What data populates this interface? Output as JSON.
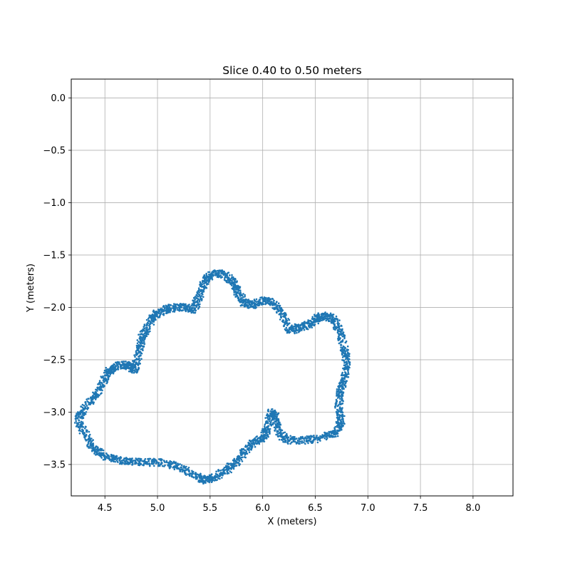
{
  "chart_data": {
    "type": "scatter",
    "title": "Slice 0.40 to 0.50 meters",
    "xlabel": "X (meters)",
    "ylabel": "Y (meters)",
    "xlim": [
      4.18,
      8.38
    ],
    "ylim": [
      -3.8,
      0.18
    ],
    "xticks": [
      4.5,
      5.0,
      5.5,
      6.0,
      6.5,
      7.0,
      7.5,
      8.0
    ],
    "xtick_labels": [
      "4.5",
      "5.0",
      "5.5",
      "6.0",
      "6.5",
      "7.0",
      "7.5",
      "8.0"
    ],
    "yticks": [
      0.0,
      -0.5,
      -1.0,
      -1.5,
      -2.0,
      -2.5,
      -3.0,
      -3.5
    ],
    "ytick_labels": [
      "0.0",
      "−0.5",
      "−1.0",
      "−1.5",
      "−2.0",
      "−2.5",
      "−3.0",
      "−3.5"
    ],
    "grid": true,
    "marker_color": "#1f77b4",
    "approx_outline": [
      [
        4.24,
        -3.07
      ],
      [
        4.3,
        -2.98
      ],
      [
        4.4,
        -2.85
      ],
      [
        4.48,
        -2.72
      ],
      [
        4.55,
        -2.6
      ],
      [
        4.62,
        -2.55
      ],
      [
        4.72,
        -2.55
      ],
      [
        4.78,
        -2.6
      ],
      [
        4.82,
        -2.45
      ],
      [
        4.85,
        -2.3
      ],
      [
        4.9,
        -2.2
      ],
      [
        4.96,
        -2.08
      ],
      [
        5.05,
        -2.03
      ],
      [
        5.15,
        -2.0
      ],
      [
        5.25,
        -2.0
      ],
      [
        5.34,
        -2.02
      ],
      [
        5.4,
        -1.88
      ],
      [
        5.45,
        -1.75
      ],
      [
        5.52,
        -1.68
      ],
      [
        5.62,
        -1.68
      ],
      [
        5.72,
        -1.75
      ],
      [
        5.76,
        -1.85
      ],
      [
        5.82,
        -1.95
      ],
      [
        5.9,
        -1.98
      ],
      [
        6.0,
        -1.93
      ],
      [
        6.1,
        -1.95
      ],
      [
        6.18,
        -2.05
      ],
      [
        6.25,
        -2.23
      ],
      [
        6.35,
        -2.19
      ],
      [
        6.45,
        -2.16
      ],
      [
        6.52,
        -2.1
      ],
      [
        6.6,
        -2.08
      ],
      [
        6.68,
        -2.12
      ],
      [
        6.74,
        -2.25
      ],
      [
        6.78,
        -2.4
      ],
      [
        6.8,
        -2.52
      ],
      [
        6.78,
        -2.68
      ],
      [
        6.74,
        -2.8
      ],
      [
        6.72,
        -2.95
      ],
      [
        6.75,
        -3.1
      ],
      [
        6.68,
        -3.2
      ],
      [
        6.55,
        -3.25
      ],
      [
        6.4,
        -3.27
      ],
      [
        6.25,
        -3.27
      ],
      [
        6.15,
        -3.2
      ],
      [
        6.12,
        -3.05
      ],
      [
        6.08,
        -3.0
      ],
      [
        6.05,
        -3.15
      ],
      [
        6.0,
        -3.25
      ],
      [
        5.9,
        -3.3
      ],
      [
        5.82,
        -3.38
      ],
      [
        5.75,
        -3.48
      ],
      [
        5.65,
        -3.56
      ],
      [
        5.55,
        -3.62
      ],
      [
        5.45,
        -3.65
      ],
      [
        5.35,
        -3.6
      ],
      [
        5.2,
        -3.52
      ],
      [
        5.05,
        -3.48
      ],
      [
        4.9,
        -3.48
      ],
      [
        4.75,
        -3.47
      ],
      [
        4.62,
        -3.46
      ],
      [
        4.5,
        -3.42
      ],
      [
        4.4,
        -3.35
      ],
      [
        4.32,
        -3.22
      ]
    ]
  }
}
